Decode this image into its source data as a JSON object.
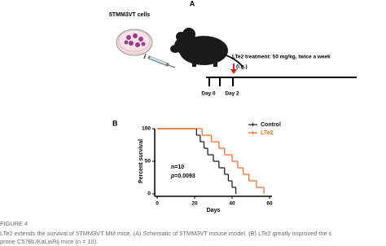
{
  "panel_a": {
    "label": "A",
    "cells_label": "5TMM3VT cells",
    "treatment": "LTe2 treatment: 50 mg/kg, twice a week",
    "route": "(i.g.)",
    "timeline": [
      "Day 0",
      "Day 2"
    ]
  },
  "chart_data": {
    "type": "line",
    "step": true,
    "panel_label": "B",
    "y_label": "Percent survival",
    "x_label": "Days",
    "xlim": [
      0,
      60
    ],
    "ylim": [
      0,
      100
    ],
    "xticks": [
      0,
      20,
      40,
      60
    ],
    "yticks": [
      0,
      50,
      100
    ],
    "legend": "upper right",
    "annotation": "n=10",
    "p_value": {
      "symbol": "p",
      "text": "=0.0093"
    },
    "series": [
      {
        "name": "Control",
        "color": "#111111",
        "x": [
          0,
          21,
          23,
          25,
          27,
          30,
          33,
          36,
          38,
          40,
          42
        ],
        "values": [
          100,
          90,
          80,
          70,
          60,
          50,
          40,
          30,
          20,
          10,
          0
        ]
      },
      {
        "name": "LTe2",
        "color": "#e8681f",
        "x": [
          0,
          24,
          29,
          33,
          36,
          40,
          43,
          46,
          49,
          53,
          57
        ],
        "values": [
          100,
          90,
          80,
          70,
          60,
          50,
          40,
          30,
          20,
          10,
          0
        ]
      }
    ]
  },
  "caption": {
    "label": "FIGURE 4",
    "lines": [
      "LTe2 extends the survival of 5TMM3VT MM mice. (A) Schematic of 5TMM3VT mouse model. (B) LTe2 greatly improved the s",
      "prone C57BL/KaLwRij mice (n = 10)."
    ]
  }
}
